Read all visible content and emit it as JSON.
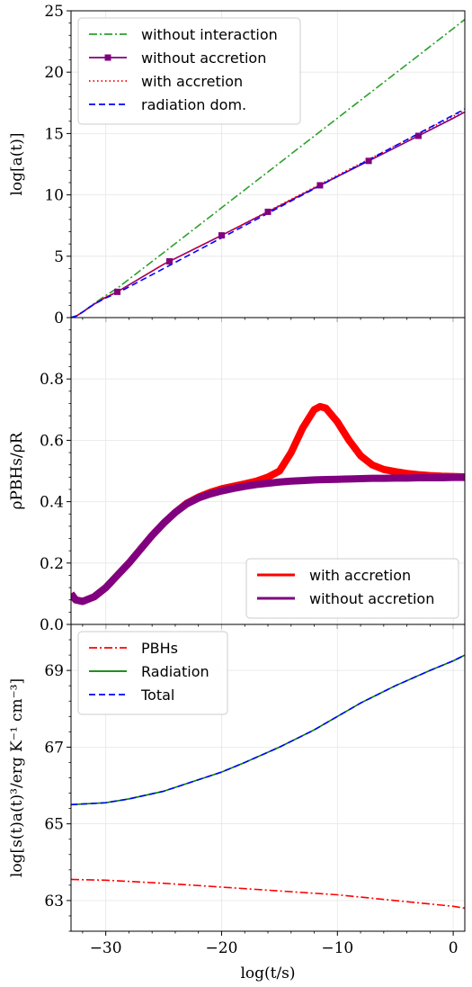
{
  "chart_data": [
    {
      "type": "line",
      "ylabel": "log[a(t)]",
      "xlim": [
        -33,
        1
      ],
      "ylim": [
        0,
        25
      ],
      "yticks": [
        0,
        5,
        10,
        15,
        20,
        25
      ],
      "grid": true,
      "legend_position": "top-left",
      "series": [
        {
          "name": "without interaction",
          "color": "#2ca02c",
          "dash": "dashdot",
          "marker": "none",
          "x": [
            -33,
            -32.5,
            -32,
            -31,
            -30,
            -29,
            -25,
            -20,
            -15,
            -10,
            -5,
            0,
            1
          ],
          "y": [
            0,
            0.15,
            0.45,
            1.15,
            1.8,
            2.4,
            5.3,
            8.95,
            12.6,
            16.25,
            19.9,
            23.55,
            24.3
          ]
        },
        {
          "name": "without accretion",
          "color": "#800080",
          "dash": "solid",
          "marker": "square",
          "x": [
            -33,
            -32.5,
            -32,
            -31,
            -30,
            -29,
            -25,
            -20,
            -15,
            -10,
            -5,
            0,
            1
          ],
          "y": [
            0,
            0.15,
            0.45,
            1.1,
            1.65,
            2.1,
            4.35,
            6.7,
            9.1,
            11.5,
            13.85,
            16.25,
            16.75
          ]
        },
        {
          "name": "with accretion",
          "color": "#ff0000",
          "dash": "dotted",
          "marker": "none",
          "x": [
            -33,
            -32.5,
            -32,
            -31,
            -30,
            -29,
            -25,
            -20,
            -15,
            -10,
            -5,
            0,
            1
          ],
          "y": [
            0,
            0.15,
            0.45,
            1.1,
            1.65,
            2.1,
            4.35,
            6.7,
            9.15,
            11.6,
            14.0,
            16.4,
            16.9
          ]
        },
        {
          "name": "radiation dom.",
          "color": "#0000ff",
          "dash": "dashed",
          "marker": "none",
          "x": [
            -33,
            -32.5,
            -32,
            -31,
            -30,
            -29,
            -25,
            -20,
            -15,
            -10,
            -5,
            0,
            1
          ],
          "y": [
            0,
            0.15,
            0.45,
            1.1,
            1.6,
            2.0,
            4.0,
            6.5,
            9.0,
            11.5,
            14.0,
            16.5,
            17.0
          ]
        }
      ],
      "markers": {
        "series": "without accretion",
        "x": [
          -29,
          -24.5,
          -20,
          -16,
          -11.5,
          -7.3,
          -3
        ]
      }
    },
    {
      "type": "line",
      "ylabel": "ρPBHs/ρR",
      "xlim": [
        -33,
        1
      ],
      "ylim": [
        0,
        1.0
      ],
      "yticks": [
        0.0,
        0.2,
        0.4,
        0.6,
        0.8
      ],
      "grid": true,
      "legend_position": "bottom-right",
      "series": [
        {
          "name": "with accretion",
          "color": "#ff0000",
          "dash": "solid",
          "width": 8,
          "x": [
            -33,
            -32.6,
            -32,
            -31,
            -30,
            -29,
            -28,
            -27,
            -26,
            -25,
            -24,
            -23,
            -22,
            -21,
            -20,
            -19,
            -18,
            -17,
            -16,
            -15,
            -14,
            -13,
            -12,
            -11.5,
            -11,
            -10,
            -9,
            -8,
            -7,
            -6,
            -5,
            -4,
            -3,
            -2,
            -1,
            0,
            1
          ],
          "y": [
            0.1,
            0.08,
            0.075,
            0.09,
            0.12,
            0.16,
            0.2,
            0.245,
            0.29,
            0.33,
            0.365,
            0.395,
            0.415,
            0.43,
            0.442,
            0.45,
            0.458,
            0.467,
            0.48,
            0.5,
            0.56,
            0.64,
            0.7,
            0.71,
            0.705,
            0.66,
            0.6,
            0.55,
            0.52,
            0.505,
            0.498,
            0.492,
            0.488,
            0.485,
            0.483,
            0.482,
            0.481
          ]
        },
        {
          "name": "without accretion",
          "color": "#800080",
          "dash": "solid",
          "width": 8,
          "x": [
            -33,
            -32.6,
            -32,
            -31,
            -30,
            -29,
            -28,
            -27,
            -26,
            -25,
            -24,
            -23,
            -22,
            -21,
            -20,
            -19,
            -18,
            -17,
            -16,
            -15,
            -14,
            -13,
            -12,
            -11,
            -10,
            -9,
            -8,
            -7,
            -6,
            -5,
            -4,
            -3,
            -2,
            -1,
            0,
            1
          ],
          "y": [
            0.1,
            0.08,
            0.075,
            0.09,
            0.12,
            0.16,
            0.2,
            0.245,
            0.29,
            0.33,
            0.365,
            0.393,
            0.412,
            0.425,
            0.435,
            0.443,
            0.45,
            0.456,
            0.46,
            0.464,
            0.467,
            0.469,
            0.471,
            0.472,
            0.473,
            0.474,
            0.475,
            0.476,
            0.476,
            0.477,
            0.477,
            0.478,
            0.478,
            0.478,
            0.479,
            0.479
          ]
        }
      ]
    },
    {
      "type": "line",
      "xlabel": "log(t/s)",
      "ylabel": "log[s(t)a(t)³/erg K⁻¹ cm⁻³]",
      "xlim": [
        -33,
        1
      ],
      "ylim": [
        62.2,
        70.2
      ],
      "yticks": [
        63,
        65,
        67,
        69
      ],
      "xticks": [
        -30,
        -20,
        -10,
        0
      ],
      "grid": true,
      "legend_position": "top-left",
      "series": [
        {
          "name": "PBHs",
          "color": "#ff0000",
          "dash": "dashdot",
          "x": [
            -33,
            -30,
            -25,
            -20,
            -15,
            -10,
            -5,
            0,
            1
          ],
          "y": [
            63.55,
            63.53,
            63.45,
            63.35,
            63.25,
            63.15,
            63.0,
            62.85,
            62.8
          ]
        },
        {
          "name": "Radiation",
          "color": "#008000",
          "dash": "solid",
          "x": [
            -33,
            -30,
            -28,
            -25,
            -22,
            -20,
            -18,
            -15,
            -12,
            -10,
            -8,
            -5,
            -2,
            0,
            1
          ],
          "y": [
            65.5,
            65.55,
            65.65,
            65.85,
            66.15,
            66.35,
            66.6,
            67.0,
            67.45,
            67.8,
            68.15,
            68.6,
            69.0,
            69.25,
            69.4
          ]
        },
        {
          "name": "Total",
          "color": "#0000ff",
          "dash": "dashed",
          "x": [
            -33,
            -30,
            -28,
            -25,
            -22,
            -20,
            -18,
            -15,
            -12,
            -10,
            -8,
            -5,
            -2,
            0,
            1
          ],
          "y": [
            65.5,
            65.55,
            65.65,
            65.85,
            66.15,
            66.35,
            66.6,
            67.0,
            67.45,
            67.8,
            68.15,
            68.6,
            69.0,
            69.25,
            69.4
          ]
        }
      ]
    }
  ]
}
